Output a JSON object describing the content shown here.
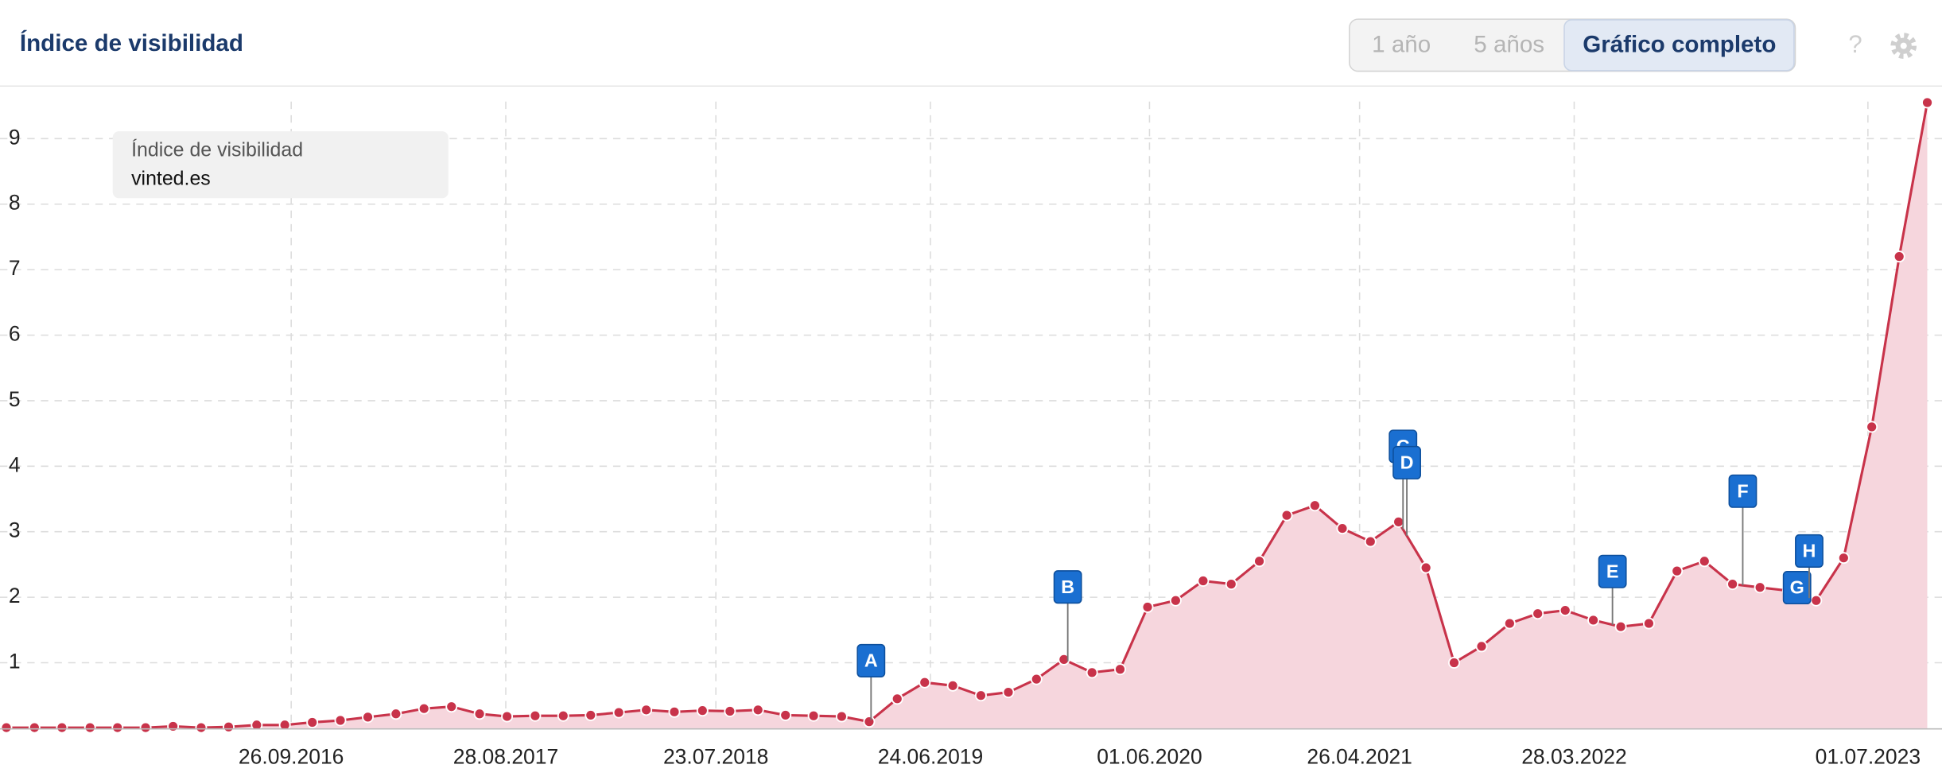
{
  "header": {
    "title": "Índice de visibilidad",
    "buttons": [
      "1 año",
      "5 años",
      "Gráfico completo"
    ],
    "active_button": 2,
    "help_icon": "?"
  },
  "chart_data": {
    "type": "area",
    "legend_title": "Índice de visibilidad",
    "x": [
      "08.07.2015",
      "21.08.2015",
      "03.10.2015",
      "16.11.2015",
      "29.12.2015",
      "11.02.2016",
      "25.03.2016",
      "08.05.2016",
      "20.06.2016",
      "03.08.2016",
      "16.09.2016",
      "29.10.2016",
      "12.12.2016",
      "24.01.2017",
      "09.03.2017",
      "22.04.2017",
      "04.06.2017",
      "18.07.2017",
      "30.08.2017",
      "13.10.2017",
      "26.11.2017",
      "08.01.2018",
      "21.02.2018",
      "05.04.2018",
      "19.05.2018",
      "02.07.2018",
      "14.08.2018",
      "27.09.2018",
      "09.11.2018",
      "23.12.2018",
      "05.02.2019",
      "20.03.2019",
      "03.05.2019",
      "15.06.2019",
      "29.07.2019",
      "11.09.2019",
      "24.10.2019",
      "07.12.2019",
      "19.01.2020",
      "03.03.2020",
      "16.04.2020",
      "29.05.2020",
      "12.07.2020",
      "24.08.2020",
      "07.10.2020",
      "20.11.2020",
      "02.01.2021",
      "15.02.2021",
      "30.03.2021",
      "13.05.2021",
      "26.06.2021",
      "08.08.2021",
      "21.09.2021",
      "03.11.2021",
      "17.12.2021",
      "30.01.2022",
      "14.03.2022",
      "27.04.2022",
      "09.06.2022",
      "23.07.2022",
      "05.09.2022",
      "18.10.2022",
      "01.12.2022",
      "13.01.2023",
      "26.02.2023",
      "11.04.2023",
      "24.05.2023",
      "07.07.2023",
      "19.08.2023",
      "02.10.2023"
    ],
    "series": [
      {
        "name": "vinted.es",
        "color": "#c8334a",
        "fill": "#f6d6dd",
        "values": [
          0.01,
          0.01,
          0.01,
          0.01,
          0.01,
          0.01,
          0.03,
          0.01,
          0.02,
          0.05,
          0.05,
          0.09,
          0.12,
          0.17,
          0.22,
          0.3,
          0.33,
          0.22,
          0.18,
          0.19,
          0.19,
          0.2,
          0.24,
          0.28,
          0.25,
          0.27,
          0.26,
          0.28,
          0.2,
          0.19,
          0.18,
          0.1,
          0.45,
          0.7,
          0.65,
          0.5,
          0.55,
          0.75,
          1.05,
          0.85,
          0.9,
          1.85,
          1.95,
          2.25,
          2.2,
          2.55,
          3.25,
          3.4,
          3.05,
          2.85,
          3.15,
          2.45,
          1.0,
          1.25,
          1.6,
          1.75,
          1.8,
          1.65,
          1.55,
          1.6,
          2.4,
          2.55,
          2.2,
          2.15,
          2.1,
          1.95,
          2.6,
          4.6,
          7.2,
          9.55
        ]
      }
    ],
    "xlim": [
      "28.06.2015",
      "25.10.2023"
    ],
    "xticks": [
      "26.09.2016",
      "28.08.2017",
      "23.07.2018",
      "24.06.2019",
      "01.06.2020",
      "26.04.2021",
      "28.03.2022",
      "01.07.2023"
    ],
    "ylim": [
      0,
      9.8
    ],
    "yticks": [
      1,
      2,
      3,
      4,
      5,
      6,
      7,
      8,
      9
    ],
    "grid": true,
    "annotations": [
      {
        "label": "A",
        "x": "23.03.2019"
      },
      {
        "label": "B",
        "x": "25.01.2020"
      },
      {
        "label": "C",
        "x": "03.07.2021"
      },
      {
        "label": "D",
        "x": "09.07.2021"
      },
      {
        "label": "E",
        "x": "27.05.2022"
      },
      {
        "label": "F",
        "x": "17.12.2022"
      },
      {
        "label": "G",
        "x": "12.03.2023"
      },
      {
        "label": "H",
        "x": "31.03.2023"
      }
    ]
  }
}
